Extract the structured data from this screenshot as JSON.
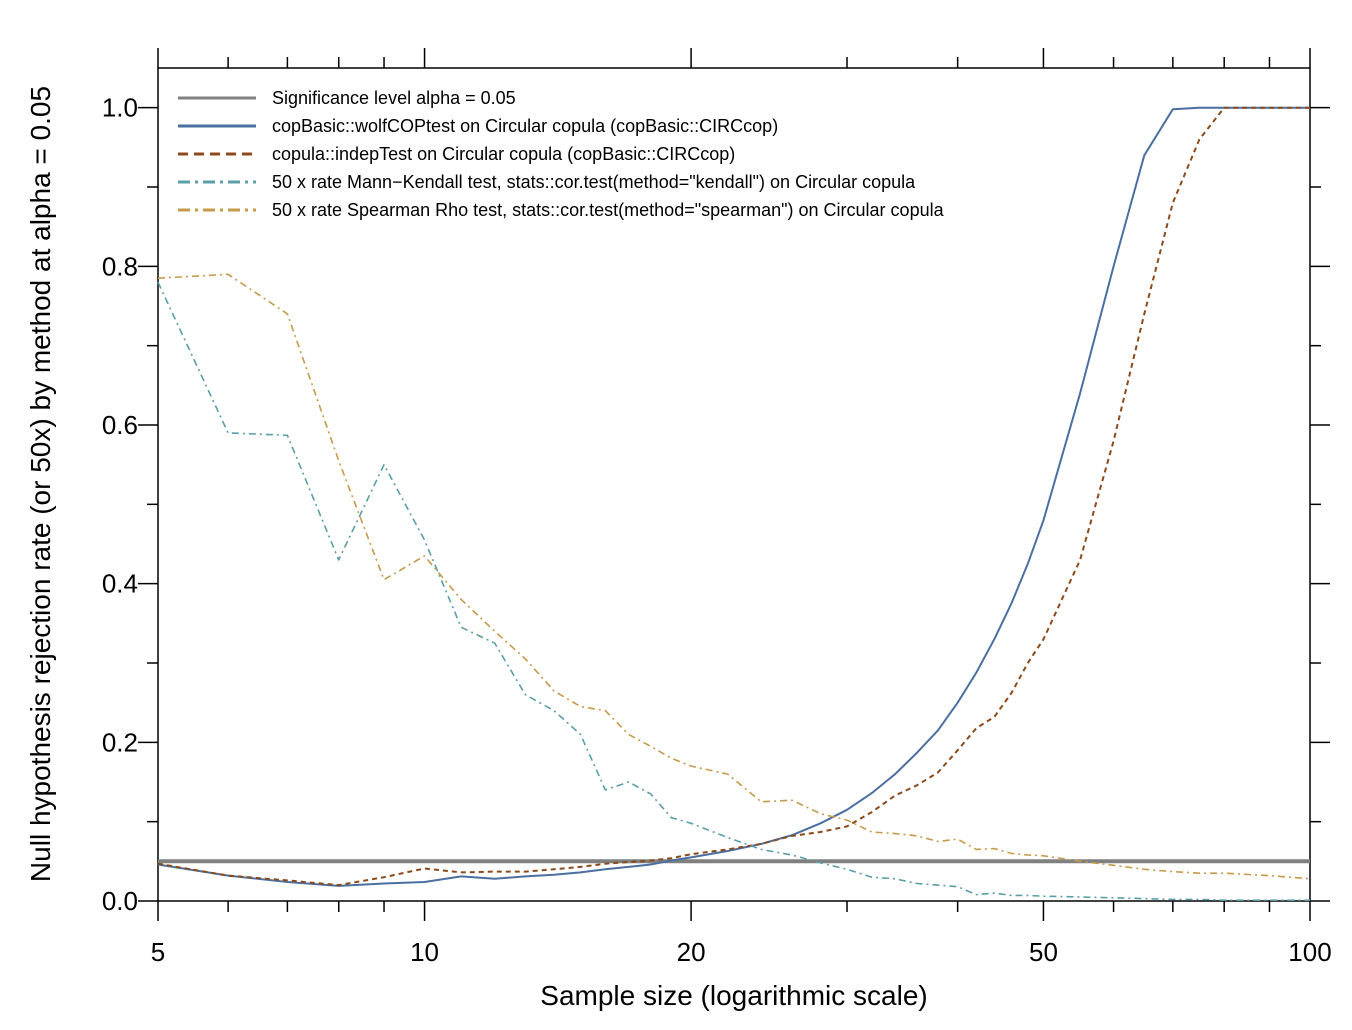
{
  "chart_data": {
    "type": "line",
    "title": "",
    "xlabel": "Sample size (logarithmic scale)",
    "ylabel": "Null hypothesis rejection rate (or 50x) by method at alpha = 0.05",
    "x_scale": "log",
    "xlim": [
      5,
      100
    ],
    "ylim": [
      0,
      1.05
    ],
    "x_ticks": [
      5,
      10,
      20,
      50,
      100
    ],
    "y_ticks": [
      0.0,
      0.2,
      0.4,
      0.6,
      0.8,
      1.0
    ],
    "y_tick_labels": [
      "0.0",
      "0.2",
      "0.4",
      "0.6",
      "0.8",
      "1.0"
    ],
    "legend_position": "top-left",
    "grid": false,
    "series": [
      {
        "name": "Significance level alpha = 0.05",
        "color": "#808080",
        "dash": "solid",
        "x": [
          5,
          100
        ],
        "y": [
          0.05,
          0.05
        ]
      },
      {
        "name": "copBasic::wolfCOPtest on Circular copula (copBasic::CIRCcop)",
        "color": "#4a6fa0",
        "dash": "solid",
        "x": [
          5,
          6,
          7,
          8,
          9,
          10,
          11,
          12,
          13,
          14,
          15,
          16,
          17,
          18,
          19,
          20,
          22,
          24,
          26,
          28,
          30,
          32,
          34,
          36,
          38,
          40,
          42,
          44,
          46,
          48,
          50,
          55,
          60,
          65,
          70,
          75,
          80,
          90,
          100
        ],
        "y": [
          0.046,
          0.032,
          0.024,
          0.019,
          0.022,
          0.024,
          0.031,
          0.028,
          0.031,
          0.033,
          0.036,
          0.04,
          0.043,
          0.046,
          0.051,
          0.055,
          0.063,
          0.072,
          0.083,
          0.098,
          0.115,
          0.136,
          0.16,
          0.187,
          0.215,
          0.25,
          0.288,
          0.33,
          0.375,
          0.425,
          0.48,
          0.64,
          0.8,
          0.94,
          0.998,
          1.0,
          1.0,
          1.0,
          1.0
        ]
      },
      {
        "name": "copula::indepTest on Circular copula (copBasic::CIRCcop)",
        "color": "#8b4a1a",
        "dash": "dashed",
        "x": [
          5,
          6,
          7,
          8,
          9,
          10,
          11,
          12,
          13,
          14,
          15,
          16,
          17,
          18,
          19,
          20,
          22,
          24,
          26,
          28,
          30,
          32,
          34,
          36,
          38,
          40,
          42,
          44,
          46,
          48,
          50,
          55,
          60,
          65,
          70,
          75,
          80,
          90,
          100
        ],
        "y": [
          0.047,
          0.032,
          0.026,
          0.02,
          0.03,
          0.041,
          0.036,
          0.037,
          0.037,
          0.04,
          0.043,
          0.047,
          0.049,
          0.051,
          0.054,
          0.059,
          0.065,
          0.072,
          0.082,
          0.087,
          0.094,
          0.112,
          0.133,
          0.146,
          0.162,
          0.19,
          0.218,
          0.232,
          0.262,
          0.3,
          0.33,
          0.43,
          0.58,
          0.74,
          0.88,
          0.96,
          1.0,
          1.0,
          1.0
        ]
      },
      {
        "name": "50 x rate Mann−Kendall test, stats::cor.test(method=\"kendall\") on Circular copula",
        "color": "#5b9ea8",
        "dash": "dashdot",
        "x": [
          5,
          6,
          7,
          8,
          9,
          10,
          11,
          12,
          13,
          14,
          15,
          16,
          17,
          18,
          19,
          20,
          22,
          24,
          26,
          28,
          30,
          32,
          34,
          36,
          38,
          40,
          42,
          44,
          46,
          48,
          50,
          55,
          60,
          65,
          70,
          75,
          80,
          90,
          100
        ],
        "y": [
          0.78,
          0.59,
          0.587,
          0.43,
          0.55,
          0.455,
          0.345,
          0.325,
          0.26,
          0.24,
          0.21,
          0.14,
          0.15,
          0.135,
          0.105,
          0.098,
          0.08,
          0.065,
          0.058,
          0.048,
          0.04,
          0.03,
          0.028,
          0.022,
          0.02,
          0.018,
          0.008,
          0.01,
          0.007,
          0.007,
          0.006,
          0.005,
          0.004,
          0.003,
          0.002,
          0.002,
          0.001,
          0.001,
          0.001
        ]
      },
      {
        "name": "50 x rate Spearman Rho test, stats::cor.test(method=\"spearman\") on Circular copula",
        "color": "#c59a4a",
        "dash": "dashdot",
        "x": [
          5,
          6,
          7,
          8,
          9,
          10,
          11,
          12,
          13,
          14,
          15,
          16,
          17,
          18,
          19,
          20,
          22,
          24,
          26,
          28,
          30,
          32,
          34,
          36,
          38,
          40,
          42,
          44,
          46,
          48,
          50,
          55,
          60,
          65,
          70,
          75,
          80,
          90,
          100
        ],
        "y": [
          0.785,
          0.79,
          0.74,
          0.555,
          0.405,
          0.435,
          0.38,
          0.34,
          0.305,
          0.265,
          0.245,
          0.24,
          0.21,
          0.195,
          0.18,
          0.17,
          0.16,
          0.125,
          0.127,
          0.11,
          0.102,
          0.087,
          0.085,
          0.082,
          0.075,
          0.078,
          0.065,
          0.066,
          0.06,
          0.058,
          0.057,
          0.05,
          0.045,
          0.04,
          0.037,
          0.035,
          0.035,
          0.032,
          0.028
        ]
      }
    ]
  }
}
